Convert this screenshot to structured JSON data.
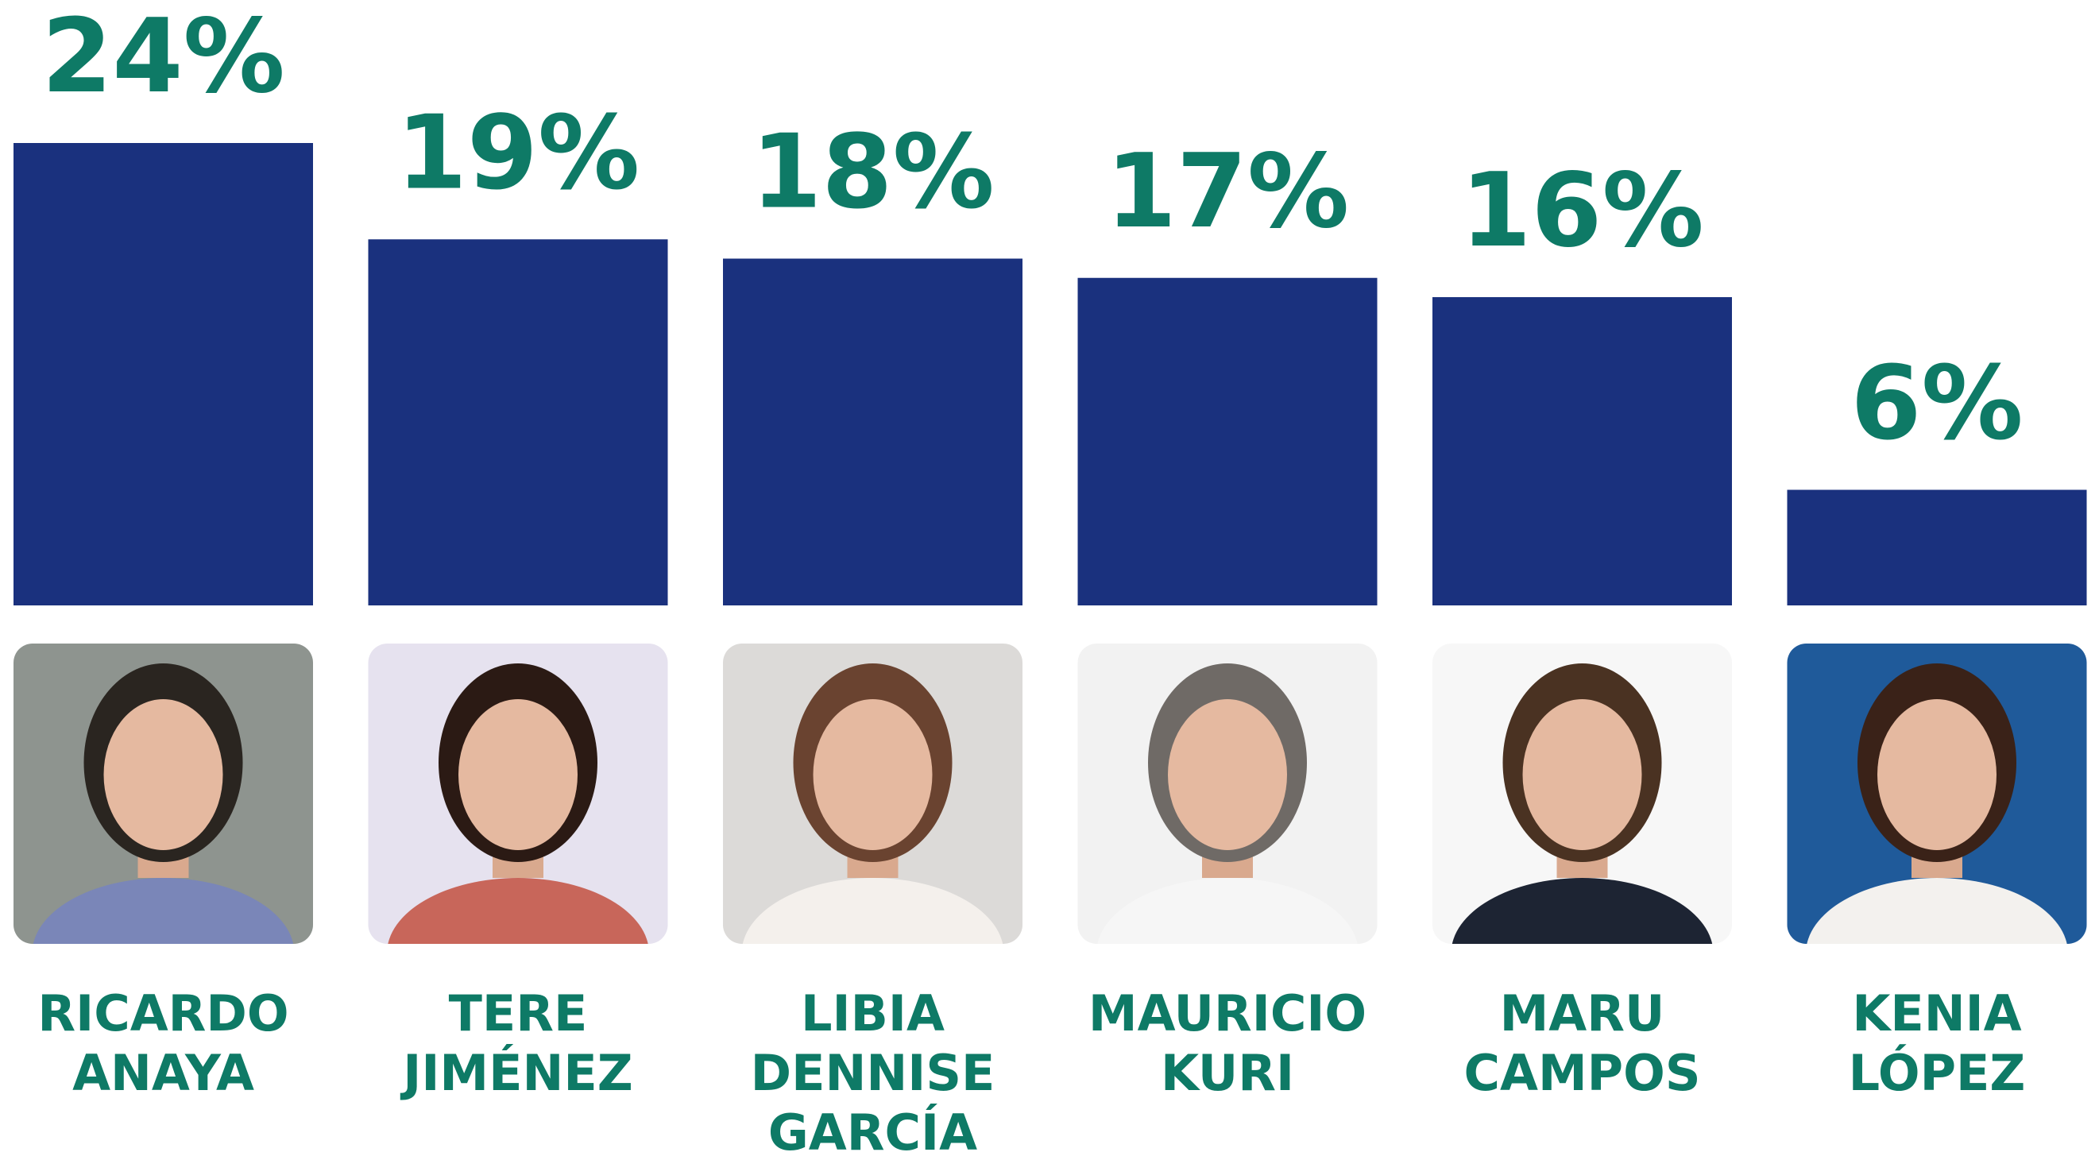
{
  "chart_data": {
    "type": "bar",
    "categories": [
      "RICARDO ANAYA",
      "TERE JIMÉNEZ",
      "LIBIA DENNISE GARCÍA",
      "MAURICIO KURI",
      "MARU CAMPOS",
      "KENIA LÓPEZ"
    ],
    "values": [
      24,
      19,
      18,
      17,
      16,
      6
    ],
    "value_labels": [
      "24%",
      "19%",
      "18%",
      "17%",
      "16%",
      "6%"
    ],
    "color": "#1a317e",
    "label_color": "#0e7a66",
    "ylim": [
      0,
      24
    ]
  }
}
